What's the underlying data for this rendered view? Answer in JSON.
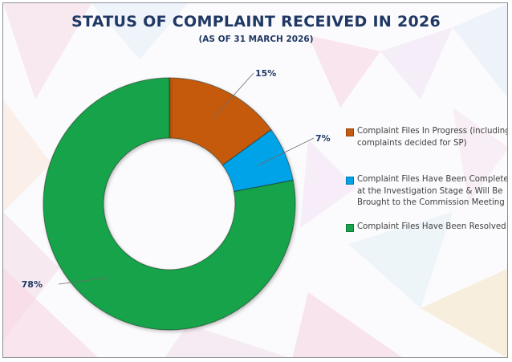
{
  "chart_data": {
    "type": "pie",
    "title": "STATUS OF COMPLAINT RECEIVED IN 2026",
    "subtitle": "(AS OF 31 MARCH 2026)",
    "donut": true,
    "legend_position": "right",
    "slices": [
      {
        "label": "Complaint Files In Progress (including complaints decided for SP)",
        "value": 15,
        "value_label": "15%",
        "color": "#c55a11"
      },
      {
        "label": "Complaint Files Have Been Completed at the Investigation Stage & Will Be Brought to the Commission Meeting",
        "value": 7,
        "value_label": "7%",
        "color": "#00a3e8"
      },
      {
        "label": "Complaint Files Have Been Resolved",
        "value": 78,
        "value_label": "78%",
        "color": "#16a34a"
      }
    ]
  }
}
